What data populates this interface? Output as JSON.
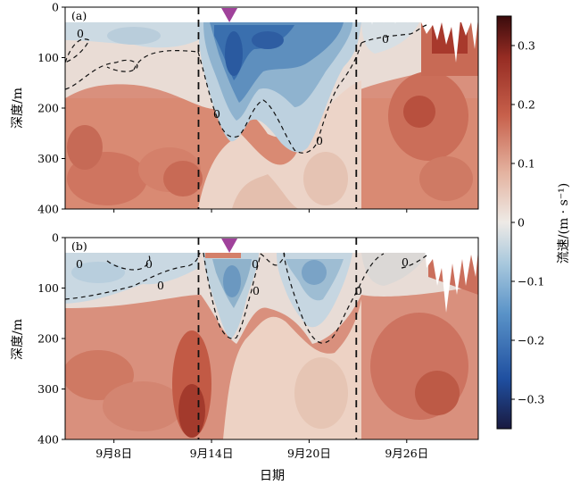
{
  "figure": {
    "xlabel": "日期",
    "ylabel": "深度/m",
    "colorbar_label": "流速/(m · s⁻¹)"
  },
  "chart_data": [
    {
      "type": "heatmap",
      "panel_label": "(a)",
      "x_ticks": [
        "9月8日",
        "9月14日",
        "9月20日",
        "9月26日"
      ],
      "x_tick_days": [
        8,
        14,
        20,
        26
      ],
      "x_range_days": [
        5,
        30.4
      ],
      "ylim": [
        400,
        0
      ],
      "y_ticks": [
        0,
        100,
        200,
        300,
        400
      ],
      "zero_contour_label": "0",
      "event_lines_days": [
        13.2,
        22.9
      ],
      "marker_day": 15.1,
      "marker_color": "#a0429b",
      "description_note": null
    },
    {
      "type": "heatmap",
      "panel_label": "(b)",
      "x_ticks": [
        "9月8日",
        "9月14日",
        "9月20日",
        "9月26日"
      ],
      "x_tick_days": [
        8,
        14,
        20,
        26
      ],
      "x_range_days": [
        5,
        30.4
      ],
      "ylim": [
        400,
        0
      ],
      "y_ticks": [
        0,
        100,
        200,
        300,
        400
      ],
      "zero_contour_label": "0",
      "event_lines_days": [
        13.2,
        22.9
      ],
      "marker_day": 15.1,
      "marker_color": "#a0429b"
    }
  ],
  "colorbar": {
    "ticks": [
      "0.3",
      "0.2",
      "0.1",
      "0",
      "−0.1",
      "−0.2",
      "−0.3"
    ],
    "tick_values": [
      0.3,
      0.2,
      0.1,
      0,
      -0.1,
      -0.2,
      -0.3
    ],
    "range": [
      -0.35,
      0.35
    ],
    "colors": [
      "#1a1a40",
      "#1f4fa0",
      "#5a93c8",
      "#a8c8dd",
      "#eeeae6",
      "#e4b3a0",
      "#c7604b",
      "#962c23",
      "#3a0b0c"
    ]
  }
}
